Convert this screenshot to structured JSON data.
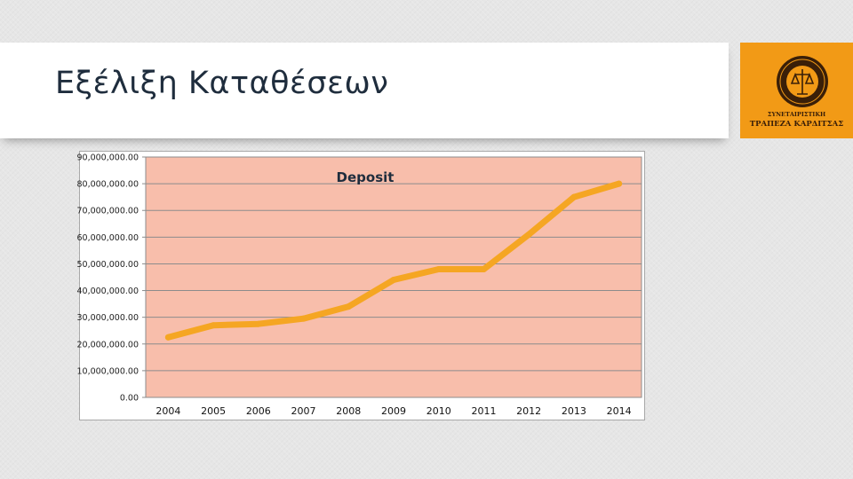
{
  "slide": {
    "title": "Εξέλιξη Καταθέσεων"
  },
  "logo": {
    "line1": "ΣΥΝΕΤΑΙΡΙΣΤΙΚΗ",
    "line2": "ΤΡΑΠΕΖΑ ΚΑΡΔΙΤΣΑΣ",
    "icon": "bank-seal-icon",
    "bg_color": "#f29a16"
  },
  "chart_data": {
    "type": "line",
    "title": "Deposit",
    "xlabel": "",
    "ylabel": "",
    "categories": [
      "2004",
      "2005",
      "2006",
      "2007",
      "2008",
      "2009",
      "2010",
      "2011",
      "2012",
      "2013",
      "2014"
    ],
    "series": [
      {
        "values": [
          22500000,
          27000000,
          27500000,
          29500000,
          34000000,
          44000000,
          48000000,
          48000000,
          61000000,
          75000000,
          80000000
        ],
        "color": "#f5a623"
      }
    ],
    "ylim": [
      0,
      90000000
    ],
    "yticks": [
      0,
      10000000,
      20000000,
      30000000,
      40000000,
      50000000,
      60000000,
      70000000,
      80000000,
      90000000
    ],
    "ytick_labels": [
      "0.00",
      "10,000,000.00",
      "20,000,000.00",
      "30,000,000.00",
      "40,000,000.00",
      "50,000,000.00",
      "60,000,000.00",
      "70,000,000.00",
      "80,000,000.00",
      "90,000,000.00"
    ],
    "grid": true,
    "plot_bg_color": "#f8beab",
    "legend": "none"
  }
}
